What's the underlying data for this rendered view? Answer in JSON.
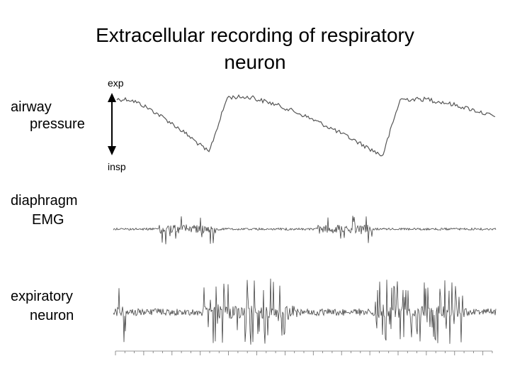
{
  "title": [
    "Extracellular recording of respiratory",
    "neuron"
  ],
  "annotations": {
    "top": "exp",
    "bottom": "insp"
  },
  "traces": [
    {
      "label": [
        "airway",
        "pressure"
      ]
    },
    {
      "label": [
        "diaphragm",
        "EMG"
      ]
    },
    {
      "label": [
        "expiratory",
        "neuron"
      ]
    }
  ]
}
